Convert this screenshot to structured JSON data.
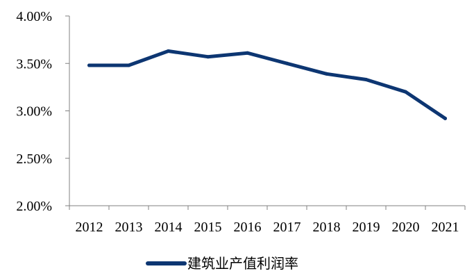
{
  "chart_data": {
    "type": "line",
    "categories": [
      "2012",
      "2013",
      "2014",
      "2015",
      "2016",
      "2017",
      "2018",
      "2019",
      "2020",
      "2021"
    ],
    "series": [
      {
        "name": "建筑业产值利润率",
        "values": [
          3.48,
          3.48,
          3.63,
          3.57,
          3.61,
          3.5,
          3.39,
          3.33,
          3.2,
          2.92
        ],
        "color": "#0d3672"
      }
    ],
    "ylim": [
      2.0,
      4.0
    ],
    "yticks": [
      "2.00%",
      "2.50%",
      "3.00%",
      "3.50%",
      "4.00%"
    ],
    "ytick_values": [
      2.0,
      2.5,
      3.0,
      3.5,
      4.0
    ],
    "grid": false,
    "legend_position": "bottom-center"
  }
}
